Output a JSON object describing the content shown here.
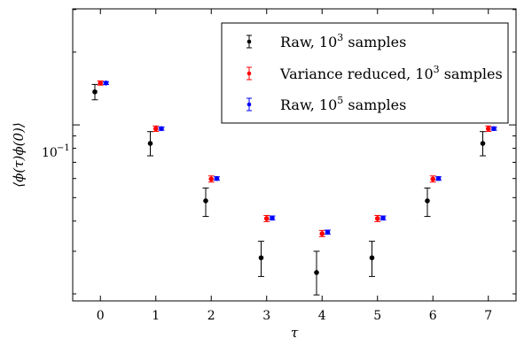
{
  "chart_data": {
    "type": "scatter",
    "xlabel": "τ",
    "ylabel": "⟨ϕ(τ)ϕ(0)⟩",
    "xlim": [
      -0.5,
      7.5
    ],
    "ylim": [
      0.0187,
      0.302
    ],
    "yscale": "log",
    "x_ticks": [
      0,
      1,
      2,
      3,
      4,
      5,
      6,
      7
    ],
    "y_tick_label": {
      "base": "10",
      "exp": "−1",
      "value": 0.1
    },
    "legend_position": "top-right",
    "series": [
      {
        "name_prefix": "Raw, 10",
        "name_exp": "3",
        "name_suffix": " samples",
        "color": "#000000",
        "x_offset": -0.1,
        "x": [
          0,
          1,
          2,
          3,
          4,
          5,
          6,
          7
        ],
        "y": [
          0.137,
          0.0838,
          0.0485,
          0.0282,
          0.0245,
          0.0282,
          0.0485,
          0.0838
        ],
        "yerr_low": [
          0.127,
          0.0745,
          0.0418,
          0.0236,
          0.0198,
          0.0236,
          0.0418,
          0.0745
        ],
        "yerr_high": [
          0.147,
          0.0938,
          0.0548,
          0.033,
          0.03,
          0.033,
          0.0548,
          0.0938
        ]
      },
      {
        "name_prefix": "Variance reduced, 10",
        "name_exp": "3",
        "name_suffix": " samples",
        "color": "#ff0000",
        "x_offset": 0.0,
        "x": [
          0,
          1,
          2,
          3,
          4,
          5,
          6,
          7
        ],
        "y": [
          0.149,
          0.0965,
          0.0597,
          0.041,
          0.0355,
          0.041,
          0.0597,
          0.0965
        ],
        "yerr_low": [
          0.146,
          0.094,
          0.058,
          0.0398,
          0.0345,
          0.0398,
          0.058,
          0.094
        ],
        "yerr_high": [
          0.152,
          0.099,
          0.0615,
          0.0422,
          0.0366,
          0.0422,
          0.0615,
          0.099
        ]
      },
      {
        "name_prefix": "Raw, 10",
        "name_exp": "5",
        "name_suffix": " samples",
        "color": "#0000ff",
        "x_offset": 0.1,
        "x": [
          0,
          1,
          2,
          3,
          4,
          5,
          6,
          7
        ],
        "y": [
          0.149,
          0.0965,
          0.06,
          0.0412,
          0.036,
          0.0412,
          0.06,
          0.0965
        ],
        "yerr_low": [
          0.147,
          0.095,
          0.059,
          0.0404,
          0.0353,
          0.0404,
          0.059,
          0.095
        ],
        "yerr_high": [
          0.151,
          0.098,
          0.061,
          0.042,
          0.0367,
          0.042,
          0.061,
          0.098
        ]
      }
    ]
  }
}
